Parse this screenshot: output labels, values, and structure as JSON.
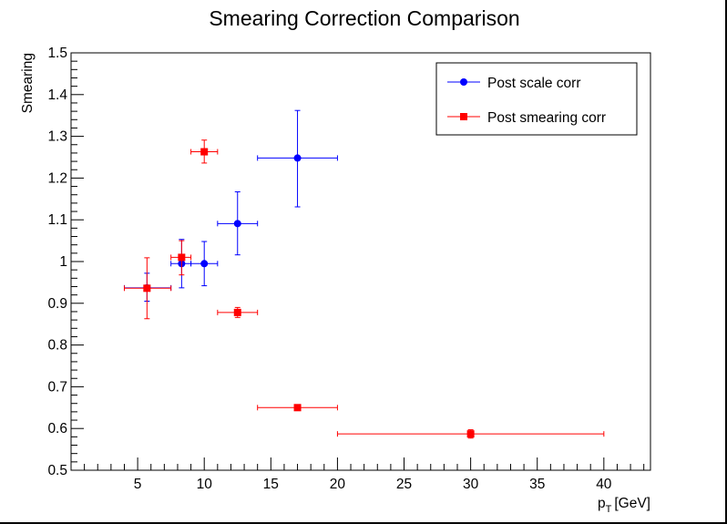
{
  "chart_data": {
    "type": "scatter",
    "title": "Smearing Correction Comparison",
    "ylabel": "Smearing",
    "xlabel_main": "p",
    "xlabel_sub": "T",
    "xlabel_unit": "[GeV]",
    "xlim": [
      0,
      43.5
    ],
    "ylim": [
      0.5,
      1.5
    ],
    "xticks": [
      5,
      10,
      15,
      20,
      25,
      30,
      35,
      40
    ],
    "xtick_labels": [
      "5",
      "10",
      "15",
      "20",
      "25",
      "30",
      "35",
      "40"
    ],
    "yticks": [
      0.5,
      0.6,
      0.7,
      0.8,
      0.9,
      1.0,
      1.1,
      1.2,
      1.3,
      1.4,
      1.5
    ],
    "ytick_labels": [
      "0.5",
      "0.6",
      "0.7",
      "0.8",
      "0.9",
      "1",
      "1.1",
      "1.2",
      "1.3",
      "1.4",
      "1.5"
    ],
    "legend_position": "top-right",
    "series": [
      {
        "name": "Post scale corr",
        "color": "#0000ff",
        "marker": "circle",
        "points": [
          {
            "x": 5.7,
            "y": 0.937,
            "xlo": 4.0,
            "xhi": 7.5,
            "ylo": 0.905,
            "yhi": 0.972
          },
          {
            "x": 8.3,
            "y": 0.995,
            "xlo": 7.5,
            "xhi": 9.0,
            "ylo": 0.937,
            "yhi": 1.053
          },
          {
            "x": 10.0,
            "y": 0.995,
            "xlo": 9.0,
            "xhi": 11.0,
            "ylo": 0.942,
            "yhi": 1.048
          },
          {
            "x": 12.5,
            "y": 1.091,
            "xlo": 11.0,
            "xhi": 14.0,
            "ylo": 1.016,
            "yhi": 1.167
          },
          {
            "x": 17.0,
            "y": 1.248,
            "xlo": 14.0,
            "xhi": 20.0,
            "ylo": 1.131,
            "yhi": 1.362
          }
        ]
      },
      {
        "name": "Post smearing corr",
        "color": "#ff0000",
        "marker": "square",
        "points": [
          {
            "x": 5.7,
            "y": 0.936,
            "xlo": 4.0,
            "xhi": 7.5,
            "ylo": 0.863,
            "yhi": 1.009
          },
          {
            "x": 8.3,
            "y": 1.01,
            "xlo": 7.5,
            "xhi": 9.0,
            "ylo": 0.968,
            "yhi": 1.05
          },
          {
            "x": 10.0,
            "y": 1.263,
            "xlo": 9.0,
            "xhi": 11.0,
            "ylo": 1.236,
            "yhi": 1.291
          },
          {
            "x": 12.5,
            "y": 0.878,
            "xlo": 11.0,
            "xhi": 14.0,
            "ylo": 0.866,
            "yhi": 0.89
          },
          {
            "x": 17.0,
            "y": 0.65,
            "xlo": 14.0,
            "xhi": 20.0,
            "ylo": 0.644,
            "yhi": 0.656
          },
          {
            "x": 30.0,
            "y": 0.587,
            "xlo": 20.0,
            "xhi": 40.0,
            "ylo": 0.577,
            "yhi": 0.597
          }
        ]
      }
    ]
  }
}
